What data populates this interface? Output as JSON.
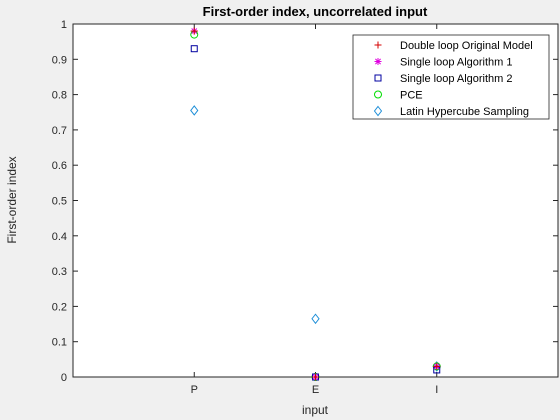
{
  "chart_data": {
    "type": "scatter",
    "title": "First-order index, uncorrelated input",
    "xlabel": "input",
    "ylabel": "First-order index",
    "categories": [
      "P",
      "E",
      "I"
    ],
    "xlim": [
      0,
      4
    ],
    "ylim": [
      0,
      1
    ],
    "y_ticks": [
      0,
      0.1,
      0.2,
      0.3,
      0.4,
      0.5,
      0.6,
      0.7,
      0.8,
      0.9,
      1
    ],
    "y_tick_labels": [
      "0",
      "0.1",
      "0.2",
      "0.3",
      "0.4",
      "0.5",
      "0.6",
      "0.7",
      "0.8",
      "0.9",
      "1"
    ],
    "grid": false,
    "legend_position": "top-right",
    "series": [
      {
        "name": "Double loop Original Model",
        "marker": "plus",
        "color": "#d40000",
        "values": [
          0.98,
          0.0,
          0.03
        ]
      },
      {
        "name": "Single loop Algorithm 1",
        "marker": "asterisk",
        "color": "#e000e0",
        "values": [
          0.98,
          0.0,
          0.03
        ]
      },
      {
        "name": "Single loop Algorithm 2",
        "marker": "square",
        "color": "#0000a0",
        "values": [
          0.93,
          0.0,
          0.02
        ]
      },
      {
        "name": "PCE",
        "marker": "circle",
        "color": "#00dd00",
        "values": [
          0.97,
          0.0,
          0.03
        ]
      },
      {
        "name": "Latin Hypercube Sampling",
        "marker": "diamond",
        "color": "#1f8fd8",
        "values": [
          0.755,
          0.165,
          0.03
        ]
      }
    ]
  }
}
